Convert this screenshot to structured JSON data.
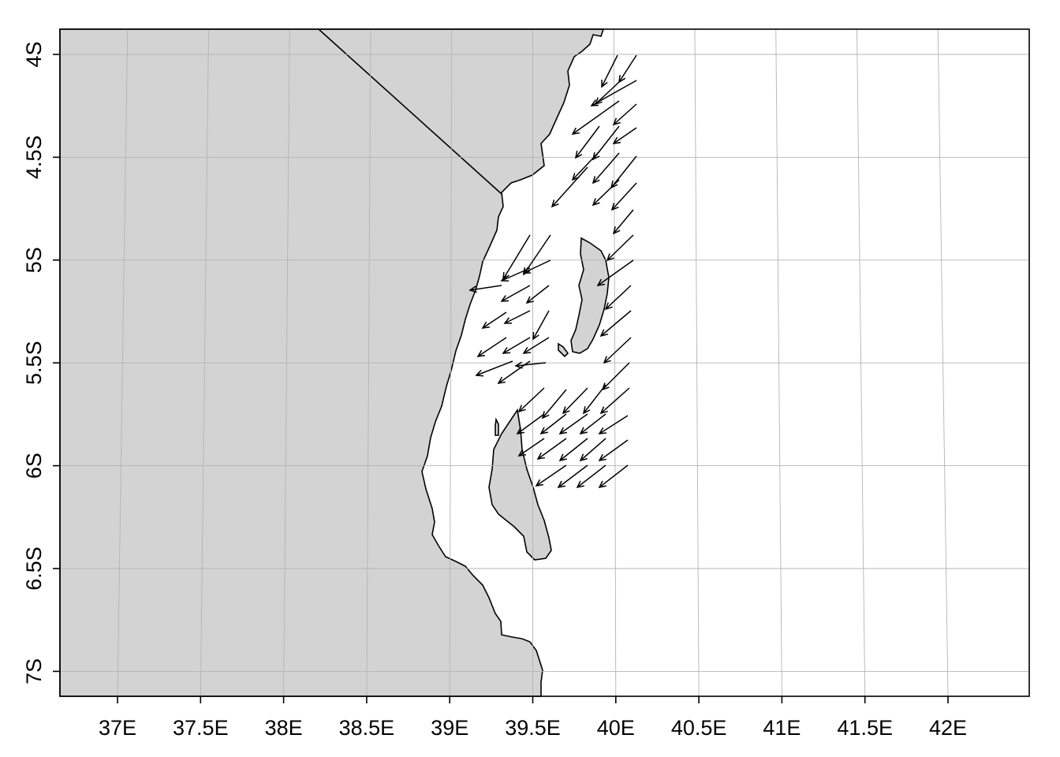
{
  "map": {
    "x_ticks": [
      "37E",
      "37.5E",
      "38E",
      "38.5E",
      "39E",
      "39.5E",
      "40E",
      "40.5E",
      "41E",
      "41.5E",
      "42E"
    ],
    "y_ticks": [
      "4S",
      "4.5S",
      "5S",
      "5.5S",
      "6S",
      "6.5S",
      "7S"
    ],
    "lon_range": [
      36.65,
      42.5
    ],
    "lat_range": [
      -7.12,
      -3.88
    ],
    "land_color": "#d3d3d3",
    "sea_color": "#ffffff",
    "grid_color": "#b4b4b4",
    "grid": true,
    "features": [
      "mainland-coast",
      "pemba-island",
      "zanzibar-island",
      "kenya-tanzania-border"
    ],
    "vector_field": {
      "direction": "south-west",
      "description": "current/wind vectors over coastal waters"
    }
  }
}
